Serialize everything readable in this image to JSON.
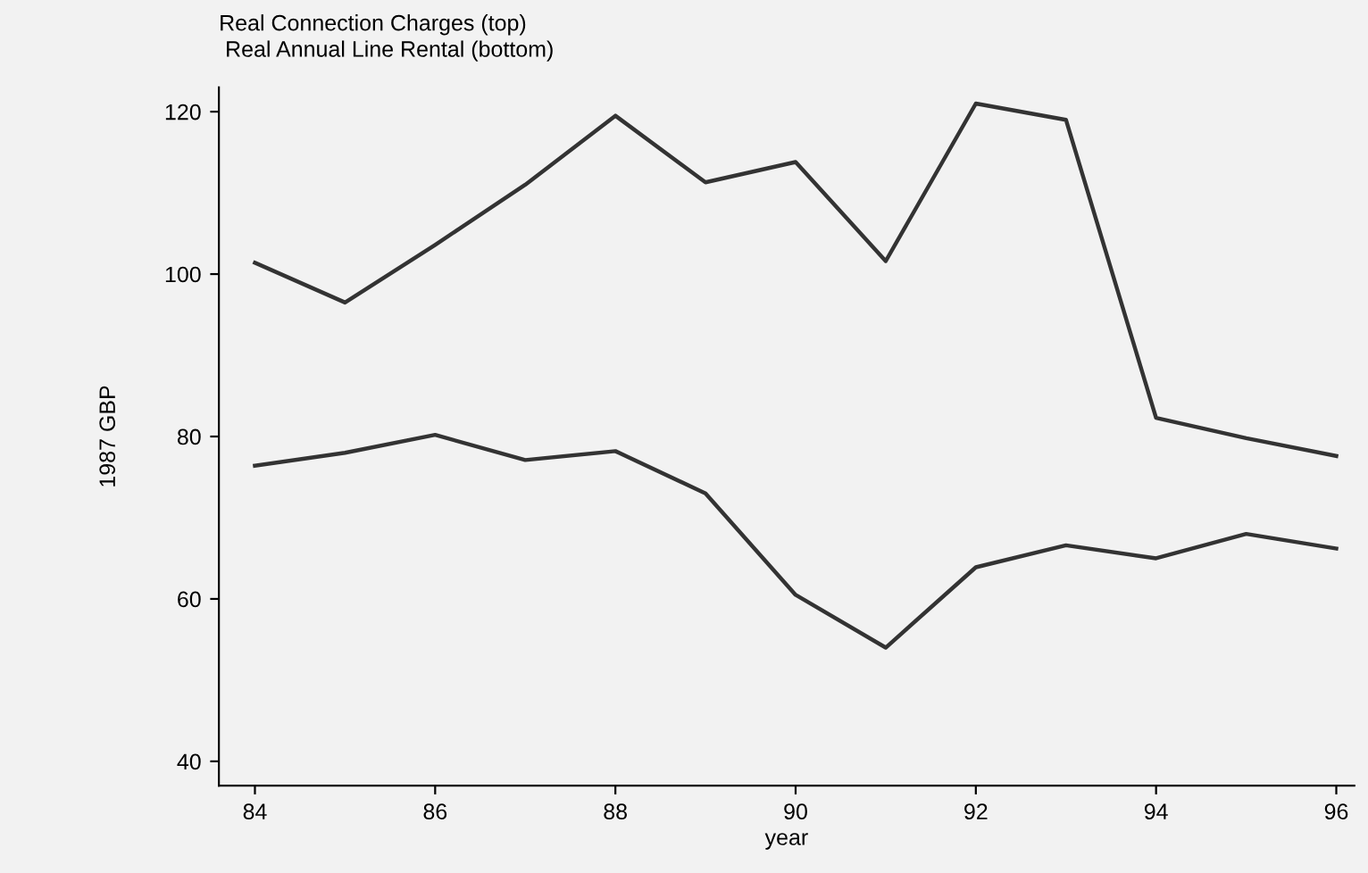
{
  "chart_data": {
    "type": "line",
    "title": "Real Connection Charges (top)",
    "subtitle": " Real Annual Line Rental (bottom)",
    "xlabel": "year",
    "ylabel": "1987 GBP",
    "x": [
      84,
      85,
      86,
      87,
      88,
      89,
      90,
      91,
      92,
      93,
      94,
      95,
      96
    ],
    "series": [
      {
        "color": "#333333",
        "values": [
          101.4,
          96.5,
          103.6,
          111,
          119.5,
          111.3,
          113.8,
          101.6,
          121,
          119,
          82.3,
          79.8,
          77.6
        ]
      },
      {
        "color": "#333333",
        "values": [
          76.4,
          78,
          80.2,
          77.1,
          78.2,
          73,
          60.5,
          54,
          63.9,
          66.6,
          65,
          68,
          66.2
        ]
      }
    ],
    "xlim": [
      83.6,
      96.2
    ],
    "ylim": [
      37,
      123
    ],
    "xticks": [
      84,
      86,
      88,
      90,
      92,
      94,
      96
    ],
    "yticks": [
      40,
      60,
      80,
      100,
      120
    ],
    "grid": false,
    "legend": false
  }
}
